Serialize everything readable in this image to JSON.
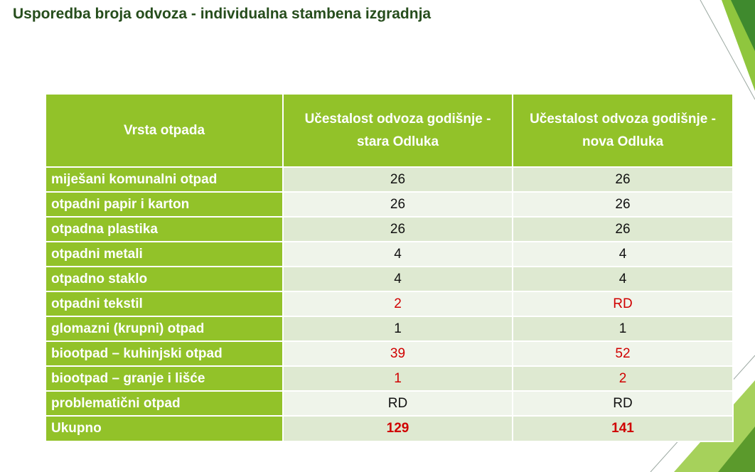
{
  "title": "Usporedba broja odvoza - individualna stambena izgradnja",
  "table": {
    "headers": [
      "Vrsta otpada",
      "Učestalost odvoza godišnje - stara Odluka",
      "Učestalost odvoza godišnje -  nova Odluka"
    ],
    "rows": [
      {
        "label": "miješani komunalni otpad",
        "old": "26",
        "new": "26"
      },
      {
        "label": "otpadni papir i karton",
        "old": "26",
        "new": "26"
      },
      {
        "label": "otpadna plastika",
        "old": "26",
        "new": "26"
      },
      {
        "label": "otpadni metali",
        "old": "4",
        "new": "4"
      },
      {
        "label": "otpadno staklo",
        "old": "4",
        "new": "4"
      },
      {
        "label": "otpadni tekstil",
        "old": "2",
        "new": "RD"
      },
      {
        "label": "glomazni (krupni) otpad",
        "old": "1",
        "new": "1"
      },
      {
        "label": "biootpad – kuhinjski otpad",
        "old": "39",
        "new": "52"
      },
      {
        "label": "biootpad – granje i lišće",
        "old": "1",
        "new": "2"
      },
      {
        "label": "problematični otpad",
        "old": "RD",
        "new": "RD"
      }
    ],
    "total": {
      "label": "Ukupno",
      "old": "129",
      "new": "141"
    }
  },
  "colors": {
    "header_green": "#92c229",
    "title_dark_green": "#264d1c",
    "changed_value_red": "#d00000",
    "row_band_dark": "#dee9d1",
    "row_band_light": "#eff4ea"
  }
}
